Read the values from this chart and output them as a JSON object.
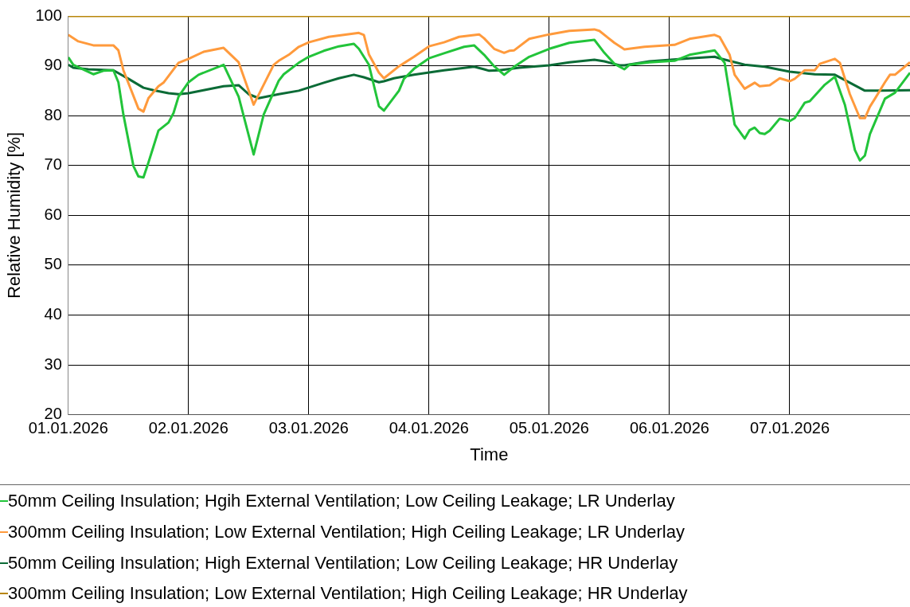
{
  "chart_data": {
    "type": "line",
    "xlabel": "Time",
    "ylabel": "Relative Humidity [%]",
    "xlim": [
      "2026-01-01",
      "2026-01-08"
    ],
    "xticks": [
      {
        "value": "2026-01-01",
        "label": "01.01.2026"
      },
      {
        "value": "2026-01-02",
        "label": "02.01.2026"
      },
      {
        "value": "2026-01-03",
        "label": "03.01.2026"
      },
      {
        "value": "2026-01-04",
        "label": "04.01.2026"
      },
      {
        "value": "2026-01-05",
        "label": "05.01.2026"
      },
      {
        "value": "2026-01-06",
        "label": "06.01.2026"
      },
      {
        "value": "2026-01-07",
        "label": "07.01.2026"
      }
    ],
    "ylim": [
      20,
      100
    ],
    "yticks": [
      20,
      30,
      40,
      50,
      60,
      70,
      80,
      90,
      100
    ],
    "grid": true,
    "legend": "bottom",
    "marker": "none",
    "line_style": "solid",
    "series": [
      {
        "name": "50mm Ceiling Insulation; Hgih External Ventilation; Low Ceiling Leakage; LR Underlay",
        "color": "#22c43a",
        "x": [
          "2026-01-01T00:00",
          "2026-01-01T01:00",
          "2026-01-01T05:00",
          "2026-01-01T07:00",
          "2026-01-01T09:00",
          "2026-01-01T10:00",
          "2026-01-01T11:00",
          "2026-01-01T13:00",
          "2026-01-01T14:00",
          "2026-01-01T15:00",
          "2026-01-01T16:00",
          "2026-01-01T17:00",
          "2026-01-01T18:00",
          "2026-01-01T20:00",
          "2026-01-01T21:00",
          "2026-01-01T22:00",
          "2026-01-02T00:00",
          "2026-01-02T02:00",
          "2026-01-02T07:00",
          "2026-01-02T10:00",
          "2026-01-02T13:00",
          "2026-01-02T15:00",
          "2026-01-02T18:00",
          "2026-01-02T19:00",
          "2026-01-02T22:00",
          "2026-01-03T00:00",
          "2026-01-03T03:00",
          "2026-01-03T06:00",
          "2026-01-03T09:00",
          "2026-01-03T10:00",
          "2026-01-03T12:00",
          "2026-01-03T14:00",
          "2026-01-03T15:00",
          "2026-01-03T18:00",
          "2026-01-03T19:00",
          "2026-01-03T21:00",
          "2026-01-04T00:00",
          "2026-01-04T03:00",
          "2026-01-04T07:00",
          "2026-01-04T09:00",
          "2026-01-04T11:00",
          "2026-01-04T13:00",
          "2026-01-04T15:00",
          "2026-01-04T17:00",
          "2026-01-04T20:00",
          "2026-01-05T00:00",
          "2026-01-05T04:00",
          "2026-01-05T09:00",
          "2026-01-05T11:00",
          "2026-01-05T13:00",
          "2026-01-05T15:00",
          "2026-01-05T16:00",
          "2026-01-05T20:00",
          "2026-01-06T01:00",
          "2026-01-06T04:00",
          "2026-01-06T09:00",
          "2026-01-06T11:00",
          "2026-01-06T13:00",
          "2026-01-06T15:00",
          "2026-01-06T16:00",
          "2026-01-06T17:00",
          "2026-01-06T18:00",
          "2026-01-06T19:00",
          "2026-01-06T20:00",
          "2026-01-06T22:00",
          "2026-01-07T00:00",
          "2026-01-07T01:00",
          "2026-01-07T03:00",
          "2026-01-07T04:00",
          "2026-01-07T07:00",
          "2026-01-07T09:00",
          "2026-01-07T11:00",
          "2026-01-07T13:00",
          "2026-01-07T14:00",
          "2026-01-07T15:00",
          "2026-01-07T16:00",
          "2026-01-07T19:00",
          "2026-01-07T21:00",
          "2026-01-08T00:00"
        ],
        "values": [
          91.7,
          90.2,
          88.3,
          89,
          89.1,
          86.7,
          80.2,
          69.9,
          67.8,
          67.6,
          70.6,
          73.8,
          77,
          78.6,
          80.5,
          83.8,
          86.7,
          88.2,
          90.2,
          83.8,
          72.2,
          80.2,
          87,
          88.3,
          90.6,
          91.8,
          93,
          93.9,
          94.4,
          93.4,
          90.2,
          81.9,
          81,
          85,
          87.4,
          89.4,
          91.5,
          92.5,
          93.8,
          94.1,
          92.2,
          89.9,
          88.2,
          89.8,
          91.8,
          93.4,
          94.6,
          95.2,
          92.6,
          90.4,
          89.3,
          90.2,
          90.7,
          91,
          92.2,
          93.1,
          90.6,
          78.2,
          75.4,
          77.1,
          77.6,
          76.5,
          76.3,
          77,
          79.4,
          78.9,
          79.5,
          82.6,
          82.9,
          86.2,
          87.8,
          82.2,
          73.1,
          71,
          72,
          76.3,
          83.4,
          84.6,
          88.6
        ]
      },
      {
        "name": "300mm Ceiling Insulation; Low External Ventilation; High Ceiling Leakage; LR Underlay",
        "color": "#ff9a3c",
        "x": [
          "2026-01-01T00:00",
          "2026-01-01T02:00",
          "2026-01-01T05:00",
          "2026-01-01T07:00",
          "2026-01-01T09:00",
          "2026-01-01T10:00",
          "2026-01-01T11:00",
          "2026-01-01T14:00",
          "2026-01-01T15:00",
          "2026-01-01T16:00",
          "2026-01-01T18:00",
          "2026-01-01T19:00",
          "2026-01-01T22:00",
          "2026-01-02T00:00",
          "2026-01-02T03:00",
          "2026-01-02T07:00",
          "2026-01-02T10:00",
          "2026-01-02T13:00",
          "2026-01-02T17:00",
          "2026-01-02T18:00",
          "2026-01-02T20:00",
          "2026-01-02T22:00",
          "2026-01-03T00:00",
          "2026-01-03T04:00",
          "2026-01-03T10:00",
          "2026-01-03T11:00",
          "2026-01-03T12:00",
          "2026-01-03T14:00",
          "2026-01-03T15:00",
          "2026-01-03T18:00",
          "2026-01-03T21:00",
          "2026-01-04T00:00",
          "2026-01-04T03:00",
          "2026-01-04T06:00",
          "2026-01-04T10:00",
          "2026-01-04T11:00",
          "2026-01-04T13:00",
          "2026-01-04T15:00",
          "2026-01-04T16:00",
          "2026-01-04T17:00",
          "2026-01-04T20:00",
          "2026-01-05T00:00",
          "2026-01-05T04:00",
          "2026-01-05T09:00",
          "2026-01-05T10:00",
          "2026-01-05T13:00",
          "2026-01-05T15:00",
          "2026-01-05T19:00",
          "2026-01-06T01:00",
          "2026-01-06T04:00",
          "2026-01-06T09:00",
          "2026-01-06T10:00",
          "2026-01-06T12:00",
          "2026-01-06T13:00",
          "2026-01-06T15:00",
          "2026-01-06T17:00",
          "2026-01-06T18:00",
          "2026-01-06T20:00",
          "2026-01-06T22:00",
          "2026-01-07T00:00",
          "2026-01-07T01:00",
          "2026-01-07T03:00",
          "2026-01-07T05:00",
          "2026-01-07T06:00",
          "2026-01-07T09:00",
          "2026-01-07T10:00",
          "2026-01-07T12:00",
          "2026-01-07T14:00",
          "2026-01-07T15:00",
          "2026-01-07T16:00",
          "2026-01-07T17:00",
          "2026-01-07T19:00",
          "2026-01-07T20:00",
          "2026-01-07T21:00",
          "2026-01-08T00:00"
        ],
        "values": [
          96.2,
          94.9,
          94.1,
          94.1,
          94.1,
          93.1,
          89.1,
          81.4,
          80.8,
          83.5,
          85.9,
          86.6,
          90.6,
          91.4,
          92.8,
          93.6,
          90.7,
          82.2,
          90.2,
          91,
          92.2,
          93.8,
          94.7,
          95.8,
          96.6,
          96.2,
          92.3,
          88.6,
          87.5,
          89.9,
          91.8,
          93.9,
          94.7,
          95.8,
          96.3,
          95.5,
          93.4,
          92.6,
          93,
          93.1,
          95.4,
          96.3,
          97,
          97.3,
          97,
          94.6,
          93.3,
          93.8,
          94.2,
          95.4,
          96.2,
          95.8,
          92.2,
          88.2,
          85.4,
          86.6,
          85.9,
          86.1,
          87.5,
          86.9,
          87.4,
          89.1,
          89.1,
          90.4,
          91.4,
          90.6,
          84.3,
          79.5,
          79.5,
          81.8,
          83.4,
          86.7,
          88.2,
          88.2,
          90.7
        ]
      },
      {
        "name": "50mm Ceiling Insulation; High External Ventilation; Low Ceiling Leakage; HR Underlay",
        "color": "#0b6b36",
        "x": [
          "2026-01-01T00:00",
          "2026-01-01T01:00",
          "2026-01-01T04:00",
          "2026-01-01T09:00",
          "2026-01-01T12:00",
          "2026-01-01T15:00",
          "2026-01-01T17:00",
          "2026-01-01T20:00",
          "2026-01-01T22:00",
          "2026-01-02T00:00",
          "2026-01-02T03:00",
          "2026-01-02T07:00",
          "2026-01-02T10:00",
          "2026-01-02T12:00",
          "2026-01-02T14:00",
          "2026-01-02T18:00",
          "2026-01-02T22:00",
          "2026-01-03T03:00",
          "2026-01-03T06:00",
          "2026-01-03T09:00",
          "2026-01-03T11:00",
          "2026-01-03T14:00",
          "2026-01-03T15:00",
          "2026-01-03T17:00",
          "2026-01-03T21:00",
          "2026-01-04T03:00",
          "2026-01-04T09:00",
          "2026-01-04T11:00",
          "2026-01-04T12:00",
          "2026-01-04T14:00",
          "2026-01-04T18:00",
          "2026-01-05T00:00",
          "2026-01-05T04:00",
          "2026-01-05T09:00",
          "2026-01-05T11:00",
          "2026-01-05T14:00",
          "2026-01-05T15:00",
          "2026-01-05T20:00",
          "2026-01-06T04:00",
          "2026-01-06T09:00",
          "2026-01-06T10:00",
          "2026-01-06T15:00",
          "2026-01-06T19:00",
          "2026-01-07T00:00",
          "2026-01-07T05:00",
          "2026-01-07T09:00",
          "2026-01-07T12:00",
          "2026-01-07T15:00",
          "2026-01-07T18:00",
          "2026-01-08T00:00"
        ],
        "values": [
          90.2,
          89.6,
          89.3,
          89.1,
          87.4,
          85.6,
          85.1,
          84.5,
          84.3,
          84.5,
          85.1,
          85.9,
          86.1,
          84.3,
          83.5,
          84.3,
          85,
          86.6,
          87.5,
          88.2,
          87.7,
          86.7,
          86.9,
          87.5,
          88.2,
          89.1,
          89.8,
          89.3,
          89,
          89.1,
          89.6,
          90.1,
          90.7,
          91.2,
          90.9,
          90.1,
          90.1,
          90.9,
          91.5,
          91.8,
          91.5,
          90.2,
          89.8,
          88.8,
          88.3,
          88.2,
          86.6,
          85,
          85,
          85.1
        ]
      },
      {
        "name": "300mm Ceiling Insulation; Low External Ventilation; High Ceiling Leakage; HR Underlay",
        "color": "#b8860b",
        "x": [
          "2026-01-01T00:00",
          "2026-01-08T00:00"
        ],
        "values": [
          100,
          100
        ]
      }
    ]
  }
}
